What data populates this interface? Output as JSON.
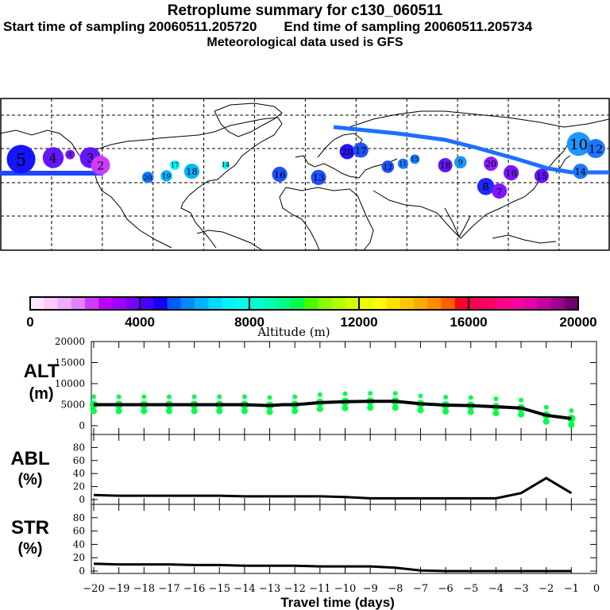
{
  "header": {
    "title": "Retroplume summary for c130_060511",
    "start_label": "Start time of sampling 20060511.205720",
    "end_label": "End time of sampling 20060511.205734",
    "met_label": "Meteorological data used is GFS"
  },
  "colorbar": {
    "label": "Altitude (m)",
    "ticks": [
      "0",
      "4000",
      "8000",
      "12000",
      "16000",
      "20000"
    ],
    "range": [
      0,
      20000
    ],
    "colors": [
      "#ffe6ff",
      "#ffc8ff",
      "#f0aaff",
      "#e182ff",
      "#cd3cff",
      "#c000ff",
      "#a000ff",
      "#7800ff",
      "#4600ff",
      "#1400ff",
      "#005aff",
      "#008cff",
      "#00b4ff",
      "#00d7ff",
      "#00f5ff",
      "#00ffea",
      "#00ffd2",
      "#00ffb4",
      "#00ff87",
      "#00ff46",
      "#46ff00",
      "#87ff00",
      "#b4ff00",
      "#d2ff00",
      "#e6ff00",
      "#ffff00",
      "#ffe100",
      "#ffc800",
      "#ffaa00",
      "#ff8c00",
      "#ff5f00",
      "#ff0028",
      "#ff0050",
      "#ff0064",
      "#ff0087",
      "#ff00a0",
      "#e600aa",
      "#c800a0",
      "#a00091",
      "#6e006e"
    ]
  },
  "map": {
    "track_color": "#1e46ff",
    "track2_color": "#1e6eff",
    "markers": [
      {
        "label": "5",
        "lon": -168,
        "lat": 40,
        "size": 3,
        "color": "#1414ff"
      },
      {
        "label": "4",
        "lon": -149,
        "lat": 41,
        "size": 2.2,
        "color": "#6414ff"
      },
      {
        "label": "4",
        "lon": -139,
        "lat": 43,
        "size": 1,
        "color": "#7a14ff"
      },
      {
        "label": "3",
        "lon": -127,
        "lat": 41,
        "size": 2.2,
        "color": "#6414ff"
      },
      {
        "label": "2",
        "lon": -121,
        "lat": 36,
        "size": 2,
        "color": "#cd3cff"
      },
      {
        "label": "20",
        "lon": -93,
        "lat": 28,
        "size": 1.2,
        "color": "#0a78ff"
      },
      {
        "label": "19",
        "lon": -82,
        "lat": 29,
        "size": 1.2,
        "color": "#00b4ff"
      },
      {
        "label": "17",
        "lon": -77,
        "lat": 36,
        "size": 1,
        "color": "#00f5ff"
      },
      {
        "label": "18",
        "lon": -67,
        "lat": 32,
        "size": 1.6,
        "color": "#00b4ff"
      },
      {
        "label": "14",
        "lon": -47,
        "lat": 36,
        "size": 0.8,
        "color": "#00f5ff"
      },
      {
        "label": "16",
        "lon": -15,
        "lat": 30,
        "size": 1.6,
        "color": "#1e50ff"
      },
      {
        "label": "13",
        "lon": 8,
        "lat": 28,
        "size": 1.6,
        "color": "#1e50ff"
      },
      {
        "label": "20",
        "lon": 25,
        "lat": 45,
        "size": 1.6,
        "color": "#2814ff"
      },
      {
        "label": "17",
        "lon": 33,
        "lat": 46,
        "size": 1.6,
        "color": "#1e50ff"
      },
      {
        "label": "12",
        "lon": 49,
        "lat": 35,
        "size": 1.3,
        "color": "#1e50ff"
      },
      {
        "label": "11",
        "lon": 58,
        "lat": 37,
        "size": 1.1,
        "color": "#1e78ff"
      },
      {
        "label": "15",
        "lon": 65,
        "lat": 40,
        "size": 1,
        "color": "#1e78ff"
      },
      {
        "label": "18",
        "lon": 83,
        "lat": 36,
        "size": 1.5,
        "color": "#6414ff"
      },
      {
        "label": "9",
        "lon": 92,
        "lat": 38,
        "size": 1.3,
        "color": "#1e96ff"
      },
      {
        "label": "20",
        "lon": 110,
        "lat": 37,
        "size": 1.5,
        "color": "#8c1eff"
      },
      {
        "label": "16",
        "lon": 122,
        "lat": 31,
        "size": 1.6,
        "color": "#7814ff"
      },
      {
        "label": "8",
        "lon": 107,
        "lat": 22,
        "size": 1.8,
        "color": "#1e28ff"
      },
      {
        "label": "7",
        "lon": 115,
        "lat": 19,
        "size": 1.6,
        "color": "#8214ff"
      },
      {
        "label": "15",
        "lon": 140,
        "lat": 29,
        "size": 1.5,
        "color": "#6414ff"
      },
      {
        "label": "10",
        "lon": 162,
        "lat": 50,
        "size": 2.5,
        "color": "#1e96ff"
      },
      {
        "label": "12",
        "lon": 172,
        "lat": 47,
        "size": 2,
        "color": "#1e78ff"
      },
      {
        "label": "14",
        "lon": 163,
        "lat": 32,
        "size": 1.6,
        "color": "#1e78ff"
      }
    ]
  },
  "chart_data": [
    {
      "type": "scatter",
      "title": "ALT",
      "ylabel": "ALT\n(m)",
      "ylim": [
        0,
        20000
      ],
      "yticks": [
        "0",
        "5000",
        "10000",
        "15000",
        "20000"
      ],
      "xlim": [
        -20,
        0
      ],
      "series": [
        {
          "name": "mean altitude",
          "x": [
            -20,
            -19,
            -18,
            -17,
            -16,
            -15,
            -14,
            -13,
            -12.5,
            -12,
            -11,
            -10,
            -9,
            -8,
            -7,
            -6,
            -5,
            -4,
            -3,
            -2,
            -1
          ],
          "values": [
            5000,
            5000,
            5000,
            5000,
            5000,
            5000,
            5000,
            4800,
            5000,
            5000,
            5500,
            5700,
            5800,
            5800,
            5200,
            4900,
            4800,
            4500,
            4200,
            2500,
            1700
          ]
        }
      ],
      "points_color": "#00ff46"
    },
    {
      "type": "line",
      "title": "ABL",
      "ylabel": "ABL\n(%)",
      "ylim": [
        0,
        100
      ],
      "yticks": [
        "0",
        "20",
        "40",
        "60",
        "80"
      ],
      "xlim": [
        -20,
        0
      ],
      "series": [
        {
          "name": "ABL fraction",
          "x": [
            -20,
            -19,
            -18,
            -17,
            -16,
            -15,
            -14,
            -13,
            -12,
            -11,
            -10,
            -9,
            -8,
            -7,
            -6,
            -5,
            -4,
            -3,
            -2,
            -1
          ],
          "values": [
            7,
            6,
            6,
            6,
            6,
            6,
            5,
            5,
            5,
            5,
            4,
            2,
            2,
            2,
            2,
            2,
            2,
            10,
            33,
            10
          ]
        }
      ]
    },
    {
      "type": "line",
      "title": "STR",
      "ylabel": "STR\n(%)",
      "ylim": [
        0,
        100
      ],
      "yticks": [
        "0",
        "20",
        "40",
        "60",
        "80"
      ],
      "xlim": [
        -20,
        0
      ],
      "xlabel": "Travel time (days)",
      "xticks": [
        "-20",
        "-19",
        "-18",
        "-17",
        "-16",
        "-15",
        "-14",
        "-13",
        "-12",
        "-11",
        "-10",
        "-9",
        "-8",
        "-7",
        "-6",
        "-5",
        "-4",
        "-3",
        "-2",
        "-1",
        "0"
      ],
      "series": [
        {
          "name": "stratospheric fraction",
          "x": [
            -20,
            -19,
            -18,
            -17,
            -16,
            -15,
            -14,
            -13,
            -12,
            -11,
            -10,
            -9,
            -8,
            -7,
            -6,
            -5,
            -4,
            -3,
            -2,
            -1
          ],
          "values": [
            11,
            10,
            10,
            10,
            9,
            9,
            8,
            8,
            8,
            7,
            7,
            7,
            5,
            1,
            0,
            0,
            0,
            0,
            0,
            0
          ]
        }
      ]
    }
  ]
}
